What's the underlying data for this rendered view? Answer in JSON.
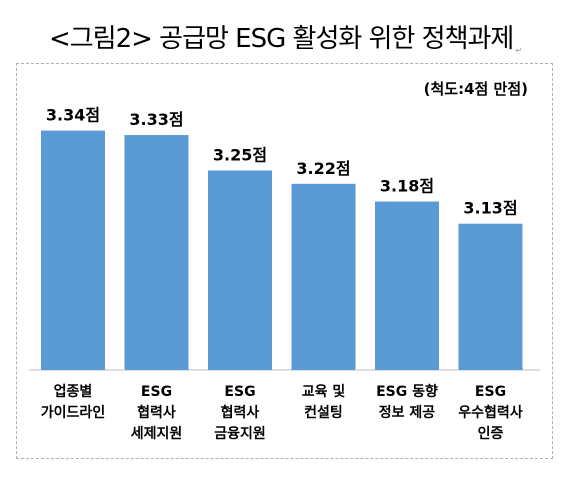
{
  "title": "<그림2> 공급망 ESG 활성화 위한 정책과제",
  "chart_data": {
    "type": "bar",
    "title": "<그림2> 공급망 ESG 활성화 위한 정책과제",
    "note": "(척도:4점 만점)",
    "categories": [
      [
        "업종별",
        "가이드라인"
      ],
      [
        "ESG",
        "협력사",
        "세제지원"
      ],
      [
        "ESG",
        "협력사",
        "금융지원"
      ],
      [
        "교육 및",
        "컨설팅"
      ],
      [
        "ESG 동향",
        "정보 제공"
      ],
      [
        "ESG",
        "우수협력사",
        "인증"
      ]
    ],
    "values": [
      3.34,
      3.33,
      3.25,
      3.22,
      3.18,
      3.13
    ],
    "value_labels": [
      "3.34점",
      "3.33점",
      "3.25점",
      "3.22점",
      "3.18점",
      "3.13점"
    ],
    "ylim": [
      2.8,
      3.4
    ],
    "grid": false,
    "bar_color": "#5b9bd5"
  }
}
